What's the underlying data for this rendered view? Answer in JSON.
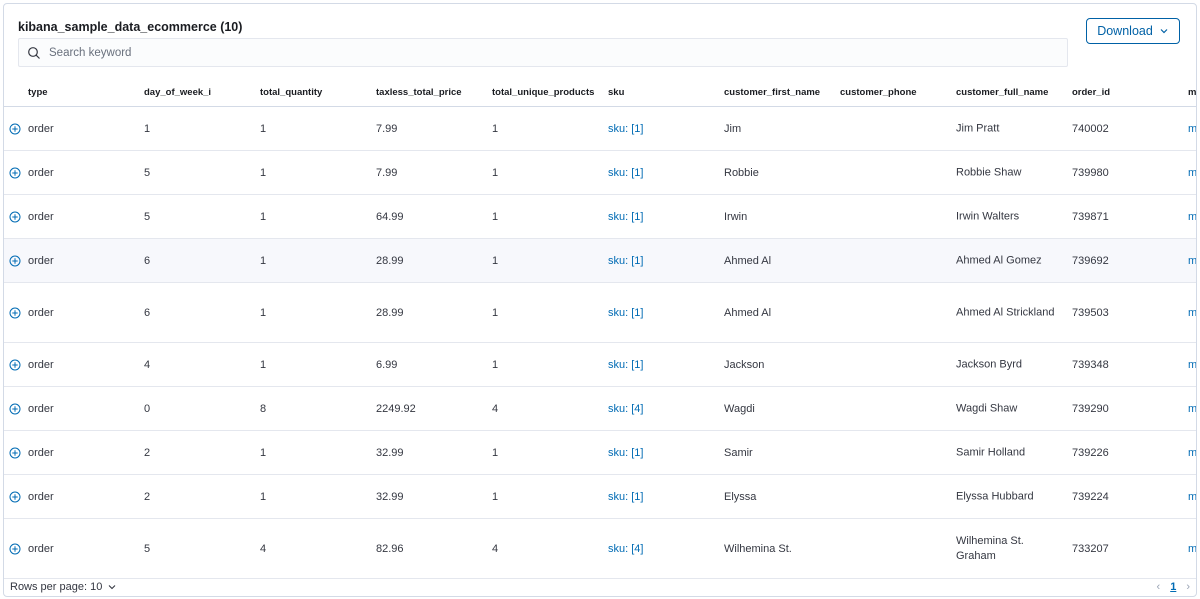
{
  "title": "kibana_sample_data_ecommerce (10)",
  "download_label": "Download",
  "search": {
    "placeholder": "Search keyword",
    "value": ""
  },
  "columns": [
    "type",
    "day_of_week_i",
    "total_quantity",
    "taxless_total_price",
    "total_unique_products",
    "sku",
    "customer_first_name",
    "customer_phone",
    "customer_full_name",
    "order_id",
    "m"
  ],
  "rows": [
    {
      "type": "order",
      "day_of_week_i": "1",
      "total_quantity": "1",
      "taxless_total_price": "7.99",
      "total_unique_products": "1",
      "sku": "sku: [1]",
      "customer_first_name": "Jim",
      "customer_phone": "",
      "customer_full_name": "Jim Pratt",
      "order_id": "740002",
      "m": "m"
    },
    {
      "type": "order",
      "day_of_week_i": "5",
      "total_quantity": "1",
      "taxless_total_price": "7.99",
      "total_unique_products": "1",
      "sku": "sku: [1]",
      "customer_first_name": "Robbie",
      "customer_phone": "",
      "customer_full_name": "Robbie Shaw",
      "order_id": "739980",
      "m": "m"
    },
    {
      "type": "order",
      "day_of_week_i": "5",
      "total_quantity": "1",
      "taxless_total_price": "64.99",
      "total_unique_products": "1",
      "sku": "sku: [1]",
      "customer_first_name": "Irwin",
      "customer_phone": "",
      "customer_full_name": "Irwin Walters",
      "order_id": "739871",
      "m": "m"
    },
    {
      "type": "order",
      "day_of_week_i": "6",
      "total_quantity": "1",
      "taxless_total_price": "28.99",
      "total_unique_products": "1",
      "sku": "sku: [1]",
      "customer_first_name": "Ahmed Al",
      "customer_phone": "",
      "customer_full_name": "Ahmed Al Gomez",
      "order_id": "739692",
      "m": "m"
    },
    {
      "type": "order",
      "day_of_week_i": "6",
      "total_quantity": "1",
      "taxless_total_price": "28.99",
      "total_unique_products": "1",
      "sku": "sku: [1]",
      "customer_first_name": "Ahmed Al",
      "customer_phone": "",
      "customer_full_name": "Ahmed Al Strickland",
      "order_id": "739503",
      "m": "m"
    },
    {
      "type": "order",
      "day_of_week_i": "4",
      "total_quantity": "1",
      "taxless_total_price": "6.99",
      "total_unique_products": "1",
      "sku": "sku: [1]",
      "customer_first_name": "Jackson",
      "customer_phone": "",
      "customer_full_name": "Jackson Byrd",
      "order_id": "739348",
      "m": "m"
    },
    {
      "type": "order",
      "day_of_week_i": "0",
      "total_quantity": "8",
      "taxless_total_price": "2249.92",
      "total_unique_products": "4",
      "sku": "sku: [4]",
      "customer_first_name": "Wagdi",
      "customer_phone": "",
      "customer_full_name": "Wagdi Shaw",
      "order_id": "739290",
      "m": "m"
    },
    {
      "type": "order",
      "day_of_week_i": "2",
      "total_quantity": "1",
      "taxless_total_price": "32.99",
      "total_unique_products": "1",
      "sku": "sku: [1]",
      "customer_first_name": "Samir",
      "customer_phone": "",
      "customer_full_name": "Samir Holland",
      "order_id": "739226",
      "m": "m"
    },
    {
      "type": "order",
      "day_of_week_i": "2",
      "total_quantity": "1",
      "taxless_total_price": "32.99",
      "total_unique_products": "1",
      "sku": "sku: [1]",
      "customer_first_name": "Elyssa",
      "customer_phone": "",
      "customer_full_name": "Elyssa Hubbard",
      "order_id": "739224",
      "m": "m"
    },
    {
      "type": "order",
      "day_of_week_i": "5",
      "total_quantity": "4",
      "taxless_total_price": "82.96",
      "total_unique_products": "4",
      "sku": "sku: [4]",
      "customer_first_name": "Wilhemina St.",
      "customer_phone": "",
      "customer_full_name": "Wilhemina St. Graham",
      "order_id": "733207",
      "m": "m"
    }
  ],
  "footer": {
    "rows_per_page_label": "Rows per page: 10",
    "current_page": "1"
  },
  "icons": {
    "search": "search-icon",
    "expand": "expand-row-icon",
    "chevron": "chevron-down-icon",
    "prev": "arrow-left-icon",
    "next": "arrow-right-icon"
  },
  "colors": {
    "accent": "#006bb4",
    "border": "#d3dae6",
    "text": "#343741"
  }
}
